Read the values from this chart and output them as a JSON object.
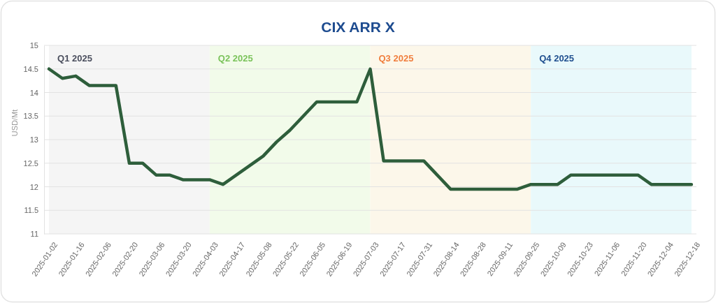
{
  "chart_data": {
    "type": "line",
    "title": "CIX ARR X",
    "ylabel": "USD/Mt",
    "categories": [
      "2025-01-02",
      null,
      "2025-01-16",
      null,
      "2025-02-06",
      null,
      "2025-02-20",
      null,
      "2025-03-06",
      null,
      "2025-03-20",
      null,
      "2025-04-03",
      null,
      "2025-04-17",
      null,
      "2025-05-08",
      null,
      "2025-05-22",
      null,
      "2025-06-05",
      null,
      "2025-06-19",
      null,
      "2025-07-03",
      null,
      "2025-07-17",
      null,
      "2025-07-31",
      null,
      "2025-08-14",
      null,
      "2025-08-28",
      null,
      "2025-09-11",
      null,
      "2025-09-25",
      null,
      "2025-10-09",
      null,
      "2025-10-23",
      null,
      "2025-11-06",
      null,
      "2025-11-20",
      null,
      "2025-12-04",
      null,
      "2025-12-18"
    ],
    "series": [
      {
        "color": "#2e5e3b",
        "values": [
          14.5,
          14.3,
          14.35,
          14.15,
          14.15,
          14.15,
          12.5,
          12.5,
          12.25,
          12.25,
          12.15,
          12.15,
          12.15,
          12.05,
          12.25,
          12.45,
          12.65,
          12.95,
          13.2,
          13.5,
          13.8,
          13.8,
          13.8,
          13.8,
          14.5,
          12.55,
          12.55,
          12.55,
          12.55,
          12.25,
          11.95,
          11.95,
          11.95,
          11.95,
          11.95,
          11.95,
          12.05,
          12.05,
          12.05,
          12.25,
          12.25,
          12.25,
          12.25,
          12.25,
          12.25,
          12.05,
          12.05,
          12.05,
          12.05
        ]
      }
    ],
    "ylim": [
      11,
      15
    ],
    "yticks": [
      11,
      11.5,
      12,
      12.5,
      13,
      13.5,
      14,
      14.5,
      15
    ],
    "grid": "y",
    "bands": [
      {
        "axis": "x",
        "from": "2025-01-02",
        "to": "2025-04-03",
        "label": "Q1 2025",
        "color": "#f5f5f5"
      },
      {
        "axis": "x",
        "from": "2025-04-03",
        "to": "2025-07-03",
        "label": "Q2 2025",
        "color": "#f2fbea"
      },
      {
        "axis": "x",
        "from": "2025-07-03",
        "to": "2025-09-25",
        "label": "Q3 2025",
        "color": "#fcf7ea"
      },
      {
        "axis": "x",
        "from": "2025-09-25",
        "to": "2025-12-18",
        "label": "Q4 2025",
        "color": "#e9f9fb"
      }
    ]
  }
}
